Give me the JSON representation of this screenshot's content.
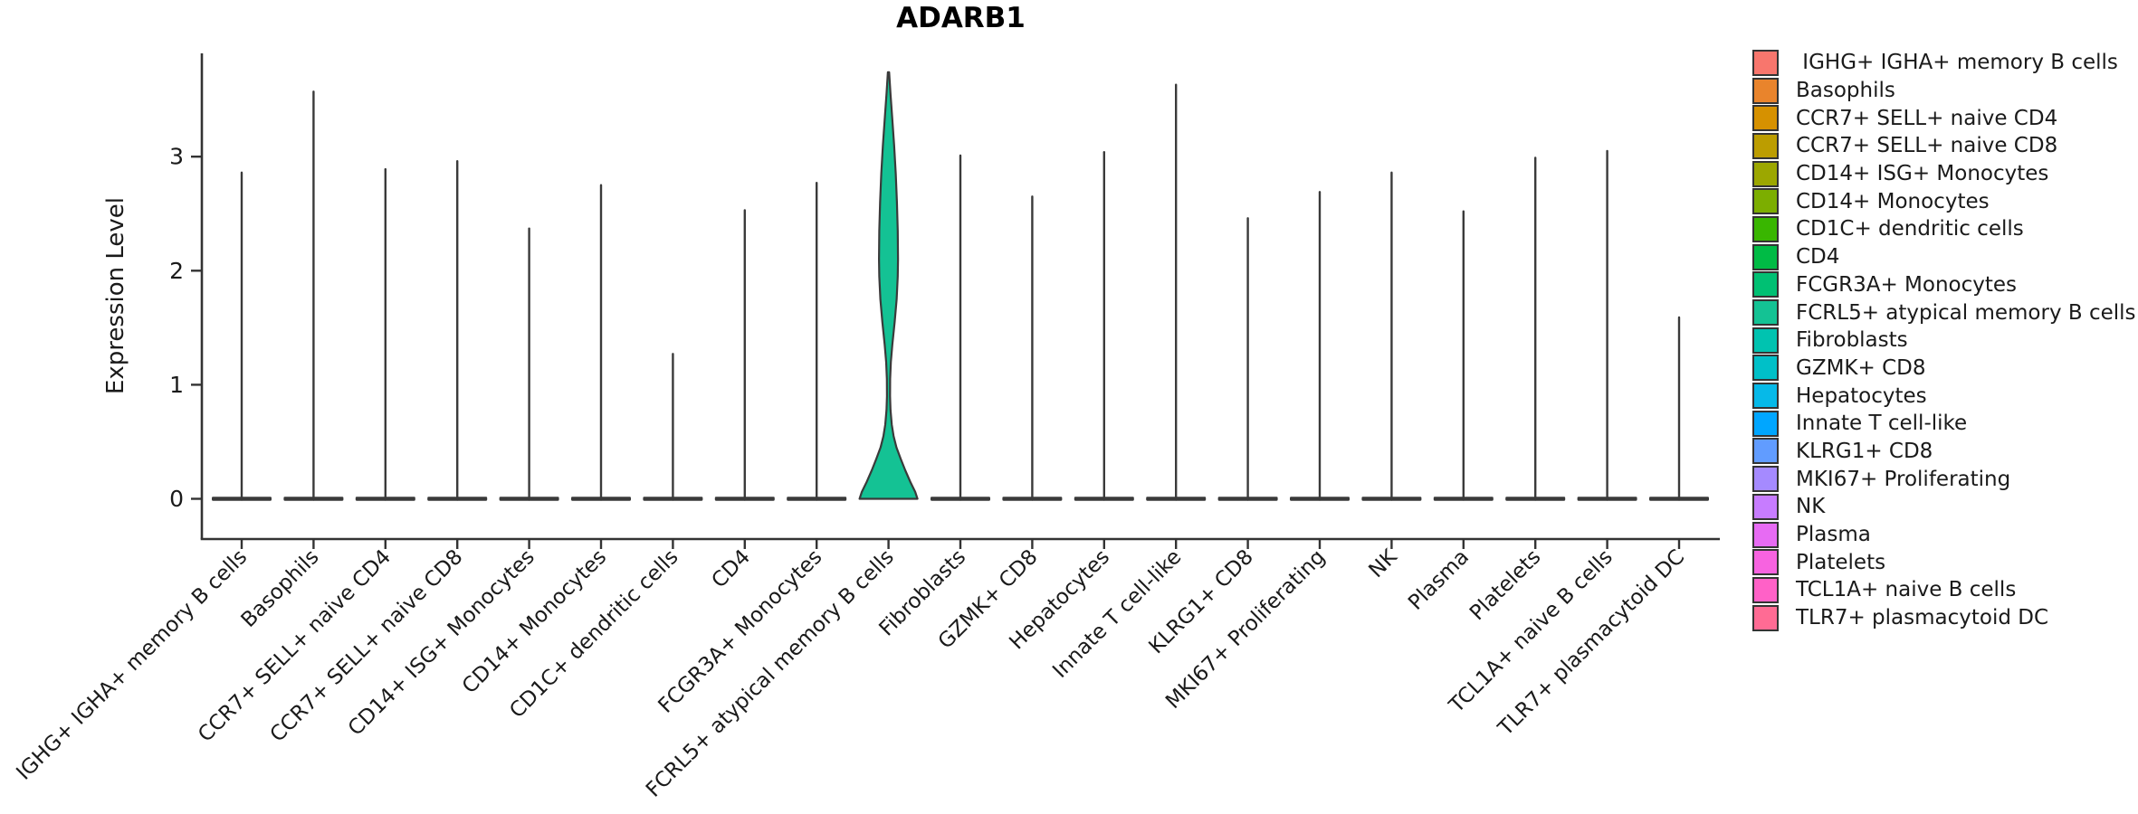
{
  "title": "ADARB1",
  "y_axis": {
    "label": "Expression Level",
    "ticks": [
      "0",
      "1",
      "2",
      "3"
    ]
  },
  "chart_data": {
    "type": "violin",
    "title": "ADARB1",
    "xlabel": "",
    "ylabel": "Expression Level",
    "ylim": [
      -0.35,
      3.9
    ],
    "yticks": [
      0,
      1,
      2,
      3
    ],
    "grid": false,
    "legend_position": "right",
    "categories": [
      "IGHG+ IGHA+ memory B cells",
      "Basophils",
      "CCR7+ SELL+ naive CD4",
      "CCR7+ SELL+ naive CD8",
      "CD14+ ISG+ Monocytes",
      "CD14+ Monocytes",
      "CD1C+ dendritic cells",
      "CD4",
      "FCGR3A+ Monocytes",
      "FCRL5+ atypical memory B cells",
      "Fibroblasts",
      "GZMK+ CD8",
      "Hepatocytes",
      "Innate T cell-like",
      "KLRG1+ CD8",
      "MKI67+ Proliferating",
      "NK",
      "Plasma",
      "Platelets",
      "TCL1A+ naive B cells",
      "TLR7+ plasmacytoid DC"
    ],
    "max_values": [
      2.86,
      3.57,
      2.89,
      2.96,
      2.37,
      2.75,
      1.27,
      2.53,
      2.77,
      3.74,
      3.01,
      2.65,
      3.04,
      3.63,
      2.46,
      2.69,
      2.86,
      2.52,
      2.99,
      3.05,
      1.59
    ],
    "colors": [
      "#F8766D",
      "#E9842C",
      "#D69100",
      "#BC9D00",
      "#9CA700",
      "#7CAE00",
      "#39B600",
      "#00BB45",
      "#00C073",
      "#14C294",
      "#00C3B0",
      "#00C0C8",
      "#06B9E8",
      "#00A6FF",
      "#619CFF",
      "#A58AFF",
      "#C77CFF",
      "#E76BF3",
      "#F763E0",
      "#FF61C7",
      "#FF6B94"
    ],
    "expressed_index": 9,
    "expressed_category": "FCRL5+ atypical memory B cells",
    "violin_profile": [
      [
        3.74,
        0.7
      ],
      [
        3.55,
        2.2
      ],
      [
        3.35,
        4.0
      ],
      [
        3.1,
        6.2
      ],
      [
        2.85,
        8.0
      ],
      [
        2.6,
        9.3
      ],
      [
        2.35,
        10.2
      ],
      [
        2.1,
        10.5
      ],
      [
        1.95,
        10.2
      ],
      [
        1.75,
        9.0
      ],
      [
        1.55,
        6.8
      ],
      [
        1.35,
        4.2
      ],
      [
        1.2,
        2.6
      ],
      [
        1.05,
        1.8
      ],
      [
        0.9,
        1.7
      ],
      [
        0.78,
        2.2
      ],
      [
        0.65,
        3.6
      ],
      [
        0.55,
        5.6
      ],
      [
        0.45,
        8.8
      ],
      [
        0.35,
        13.5
      ],
      [
        0.25,
        18.5
      ],
      [
        0.15,
        24.0
      ],
      [
        0.06,
        29.5
      ],
      [
        0.0,
        32.0
      ]
    ],
    "outline_color": "#3a3a3a",
    "axis_color": "#333333"
  },
  "legend": {
    "items": [
      {
        "label": " IGHG+ IGHA+ memory B cells",
        "color": "#F8766D"
      },
      {
        "label": "Basophils",
        "color": "#E9842C"
      },
      {
        "label": "CCR7+ SELL+ naive CD4",
        "color": "#D69100"
      },
      {
        "label": "CCR7+ SELL+ naive CD8",
        "color": "#BC9D00"
      },
      {
        "label": "CD14+ ISG+ Monocytes",
        "color": "#9CA700"
      },
      {
        "label": "CD14+ Monocytes",
        "color": "#7CAE00"
      },
      {
        "label": "CD1C+ dendritic cells",
        "color": "#39B600"
      },
      {
        "label": "CD4",
        "color": "#00BB45"
      },
      {
        "label": "FCGR3A+ Monocytes",
        "color": "#00C073"
      },
      {
        "label": "FCRL5+ atypical memory B cells",
        "color": "#14C294"
      },
      {
        "label": "Fibroblasts",
        "color": "#00C3B0"
      },
      {
        "label": "GZMK+ CD8",
        "color": "#00C0C8"
      },
      {
        "label": "Hepatocytes",
        "color": "#06B9E8"
      },
      {
        "label": "Innate T cell-like",
        "color": "#00A6FF"
      },
      {
        "label": "KLRG1+ CD8",
        "color": "#619CFF"
      },
      {
        "label": "MKI67+ Proliferating",
        "color": "#A58AFF"
      },
      {
        "label": "NK",
        "color": "#C77CFF"
      },
      {
        "label": "Plasma",
        "color": "#E76BF3"
      },
      {
        "label": "Platelets",
        "color": "#F763E0"
      },
      {
        "label": "TCL1A+ naive B cells",
        "color": "#FF61C7"
      },
      {
        "label": "TLR7+ plasmacytoid DC",
        "color": "#FF6B94"
      }
    ]
  }
}
